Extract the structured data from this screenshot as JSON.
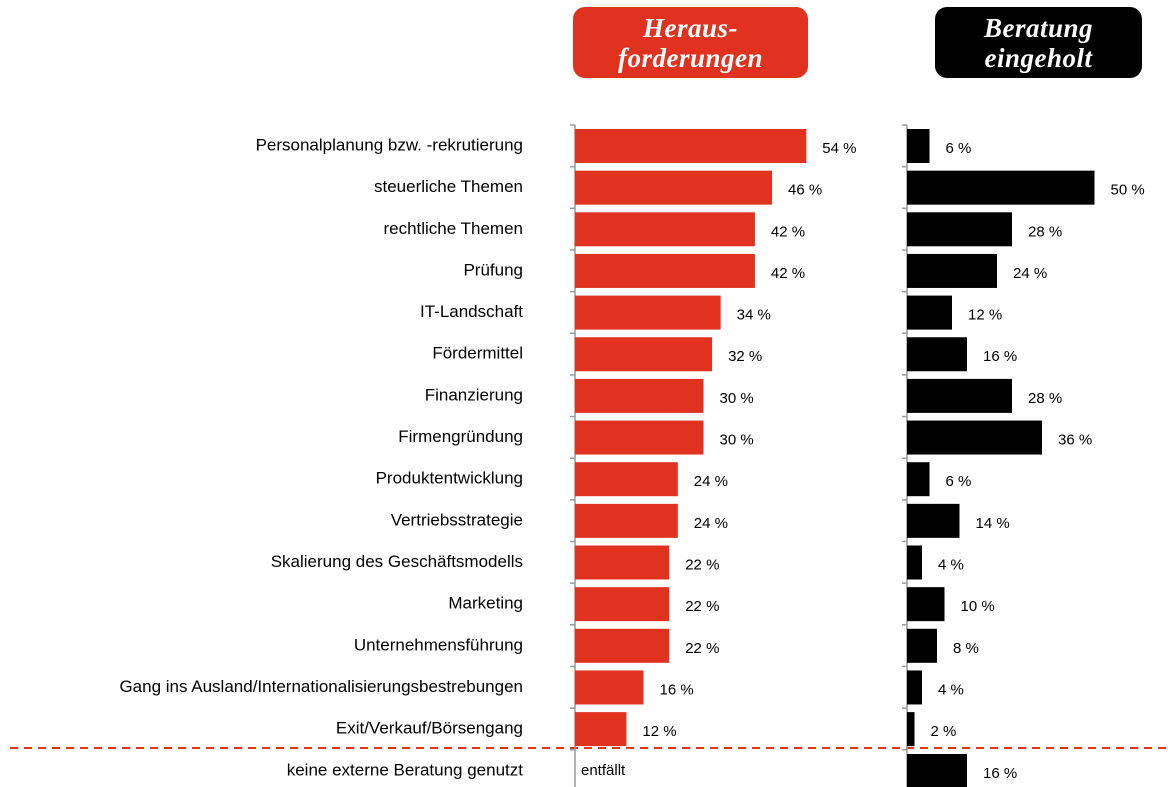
{
  "chart_data": {
    "type": "bar",
    "orientation": "horizontal",
    "categories": [
      "Personalplanung bzw. -rekrutierung",
      "steuerliche Themen",
      "rechtliche Themen",
      "Prüfung",
      "IT-Landschaft",
      "Fördermittel",
      "Finanzierung",
      "Firmengründung",
      "Produktentwicklung",
      "Vertriebsstrategie",
      "Skalierung des Geschäftsmodells",
      "Marketing",
      "Unternehmensführung",
      "Gang ins Ausland/Internationalisierungsbestrebungen",
      "Exit/Verkauf/Börsengang",
      "keine externe Beratung genutzt"
    ],
    "xlim": [
      0,
      60
    ],
    "series": [
      {
        "name": "Heraus-\nforderungen",
        "color": "#e0321f",
        "values": [
          54,
          46,
          42,
          42,
          34,
          32,
          30,
          30,
          24,
          24,
          22,
          22,
          22,
          16,
          12,
          null
        ],
        "value_labels": [
          "54 %",
          "46 %",
          "42 %",
          "42 %",
          "34 %",
          "32 %",
          "30 %",
          "30 %",
          "24 %",
          "24 %",
          "22 %",
          "22 %",
          "22 %",
          "16 %",
          "12 %",
          "entfällt"
        ]
      },
      {
        "name": "Beratung\neingeholt",
        "color": "#000000",
        "values": [
          6,
          50,
          28,
          24,
          12,
          16,
          28,
          36,
          6,
          14,
          4,
          10,
          8,
          4,
          2,
          16
        ],
        "value_labels": [
          "6 %",
          "50 %",
          "28 %",
          "24 %",
          "12 %",
          "16 %",
          "28 %",
          "36 %",
          "6 %",
          "14 %",
          "4 %",
          "10 %",
          "8 %",
          "4 %",
          "2 %",
          "16 %"
        ]
      }
    ]
  }
}
